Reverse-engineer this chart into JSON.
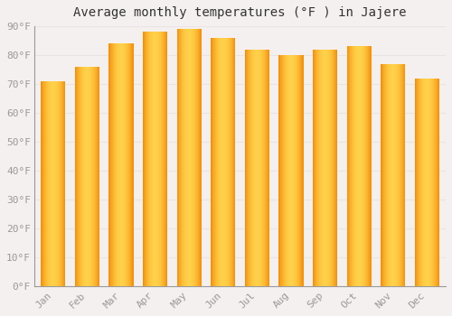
{
  "title": "Average monthly temperatures (°F ) in Jajere",
  "months": [
    "Jan",
    "Feb",
    "Mar",
    "Apr",
    "May",
    "Jun",
    "Jul",
    "Aug",
    "Sep",
    "Oct",
    "Nov",
    "Dec"
  ],
  "values": [
    71,
    76,
    84,
    88,
    89,
    86,
    82,
    80,
    82,
    83,
    77,
    72
  ],
  "bar_color_center": "#FFD04A",
  "bar_color_edge": "#F5900A",
  "ylim": [
    0,
    90
  ],
  "yticks": [
    0,
    10,
    20,
    30,
    40,
    50,
    60,
    70,
    80,
    90
  ],
  "ytick_labels": [
    "0°F",
    "10°F",
    "20°F",
    "30°F",
    "40°F",
    "50°F",
    "60°F",
    "70°F",
    "80°F",
    "90°F"
  ],
  "background_color": "#f5f0f0",
  "grid_color": "#e8e4e4",
  "title_fontsize": 10,
  "tick_fontsize": 8,
  "axis_color": "#999999"
}
